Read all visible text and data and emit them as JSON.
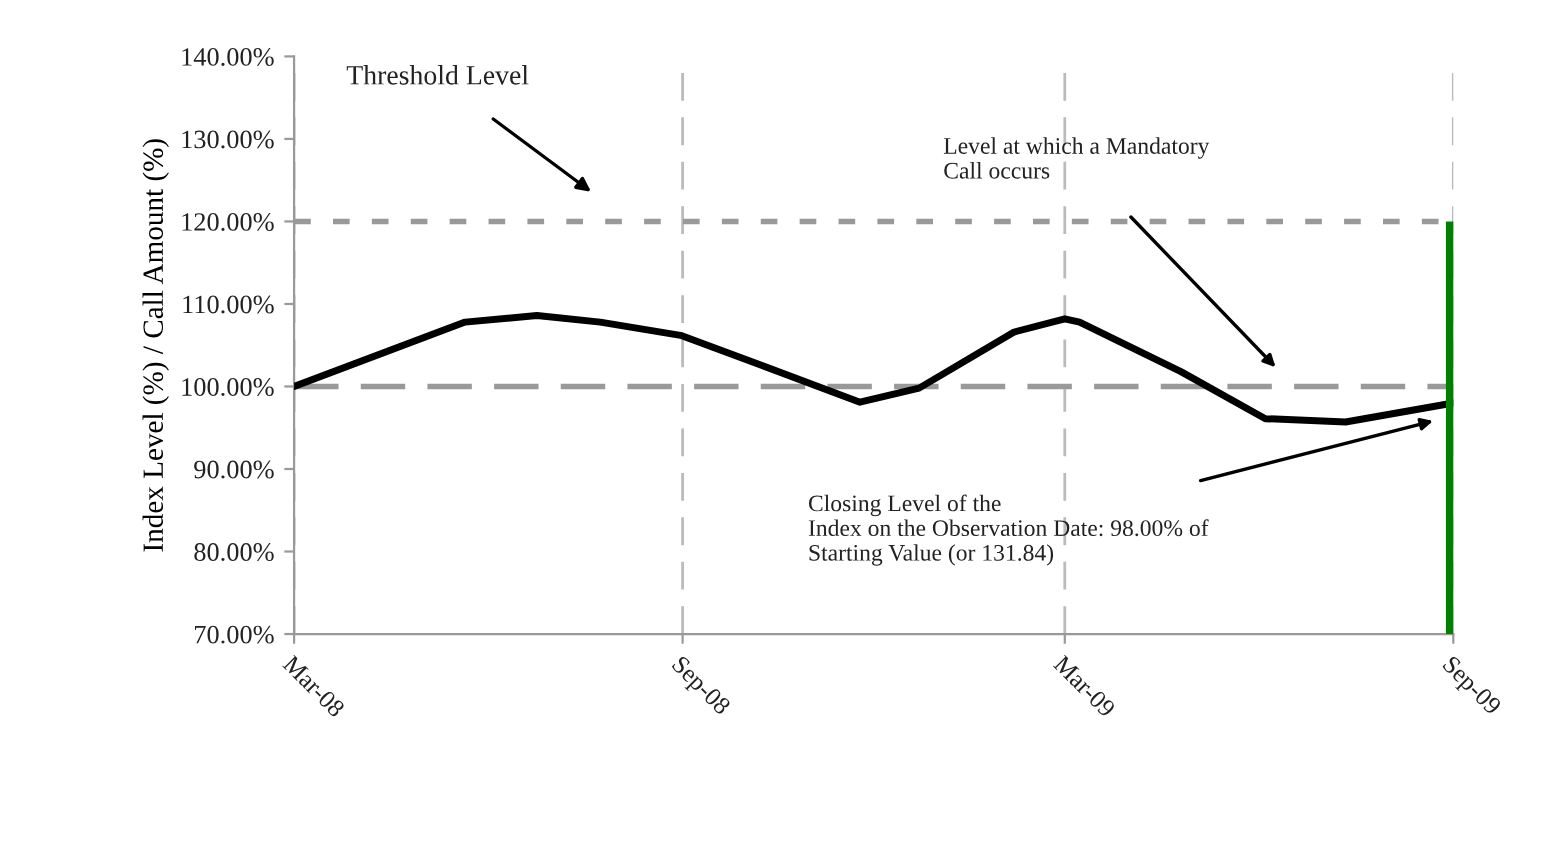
{
  "chart_data": {
    "type": "line",
    "ylabel": "Index Level (%) / Call Amount (%)",
    "series": [
      {
        "color": "#000000",
        "x": [
          "2008-03-01",
          "2008-05-21",
          "2008-06-24",
          "2008-07-24",
          "2008-08-31",
          "2008-10-08",
          "2008-11-24",
          "2008-12-22",
          "2009-02-05",
          "2009-03-01",
          "2009-03-08",
          "2009-04-25",
          "2009-06-04",
          "2009-07-12",
          "2009-09-01"
        ],
        "values": [
          100,
          107.8,
          108.6,
          107.8,
          106.2,
          102.6,
          98.1,
          99.8,
          106.6,
          108.2,
          107.8,
          101.8,
          96.1,
          95.7,
          98
        ]
      },
      {
        "type": "bar",
        "color": "#008000",
        "x": [
          "2009-09-01"
        ],
        "values": [
          120
        ]
      }
    ],
    "xlim": [
      "2008-03-01",
      "2009-09-01"
    ],
    "xticks": [
      {
        "value": "2008-03-01",
        "label": "Mar-08"
      },
      {
        "value": "2008-09-01",
        "label": "Sep-08"
      },
      {
        "value": "2009-03-01",
        "label": "Mar-09"
      },
      {
        "value": "2009-09-01",
        "label": "Sep-09"
      }
    ],
    "ylim": [
      70,
      140
    ],
    "yticks": [
      {
        "value": 70,
        "label": "70.00%"
      },
      {
        "value": 80,
        "label": "80.00%"
      },
      {
        "value": 90,
        "label": "90.00%"
      },
      {
        "value": 100,
        "label": "100.00%"
      },
      {
        "value": 110,
        "label": "110.00%"
      },
      {
        "value": 120,
        "label": "120.00%"
      },
      {
        "value": 130,
        "label": "130.00%"
      },
      {
        "value": 140,
        "label": "140.00%"
      }
    ],
    "grid": "x",
    "ref_lines": [
      {
        "axis": "y",
        "value": 120,
        "color": "#999999",
        "line_style": "dotted"
      },
      {
        "axis": "y",
        "value": 100,
        "color": "#999999",
        "line_style": "dashed"
      }
    ],
    "annotations": [
      "Threshold Level",
      "Level at which a Mandatory\nCall occurs",
      {
        "text": "Closing Level of the\nIndex on the Observation Date: 98.00% of\nStarting Value (or 131.84)",
        "x": "2009-08-25",
        "y": 96
      }
    ]
  }
}
